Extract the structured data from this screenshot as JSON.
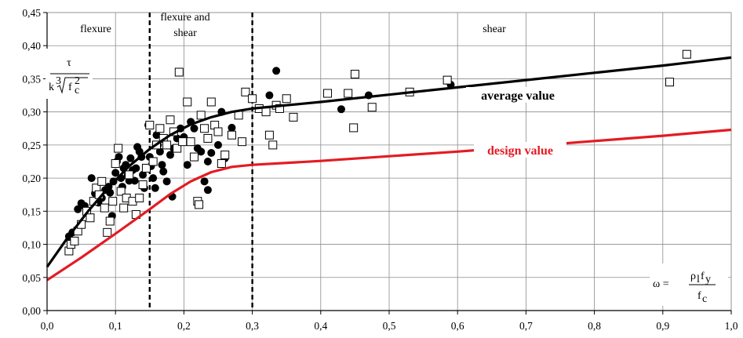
{
  "chart_data": {
    "type": "scatter",
    "xlim": [
      0,
      1.0
    ],
    "ylim": [
      0,
      0.45
    ],
    "x_ticks": [
      "0,0",
      "0,1",
      "0,2",
      "0,3",
      "0,4",
      "0,5",
      "0,6",
      "0,7",
      "0,8",
      "0,9",
      "1,0"
    ],
    "y_ticks": [
      "0,00",
      "0,05",
      "0,10",
      "0,15",
      "0,20",
      "0,25",
      "0,30",
      "0,35",
      "0,40",
      "0,45"
    ],
    "grid": true,
    "y_axis_label": {
      "numerator": "τ",
      "denominator_k": "k",
      "root_index": "3",
      "radicand_f": "f",
      "radicand_sub": "c",
      "radicand_sup": "2"
    },
    "x_axis_label": {
      "lhs": "ω =",
      "num_rho": "ρ",
      "num_rho_sub": "l",
      "num_f": "f",
      "num_f_sub": "y",
      "den_f": "f",
      "den_f_sub": "c"
    },
    "regions": [
      {
        "label": "flexure"
      },
      {
        "label_line1": "flexure and",
        "label_line2": "shear"
      },
      {
        "label": "shear"
      }
    ],
    "boundaries": [
      0.15,
      0.3
    ],
    "boundary_color": "#000000",
    "curves": [
      {
        "name": "average value",
        "color": "#000000",
        "points": [
          [
            0,
            0.066
          ],
          [
            0.03,
            0.11
          ],
          [
            0.06,
            0.15
          ],
          [
            0.09,
            0.186
          ],
          [
            0.12,
            0.218
          ],
          [
            0.15,
            0.244
          ],
          [
            0.18,
            0.265
          ],
          [
            0.21,
            0.281
          ],
          [
            0.24,
            0.292
          ],
          [
            0.27,
            0.3
          ],
          [
            0.3,
            0.305
          ],
          [
            0.35,
            0.31
          ],
          [
            0.4,
            0.315
          ],
          [
            0.5,
            0.326
          ],
          [
            0.6,
            0.337
          ],
          [
            0.7,
            0.348
          ],
          [
            0.8,
            0.359
          ],
          [
            0.9,
            0.37
          ],
          [
            1.0,
            0.382
          ]
        ]
      },
      {
        "name": "design value",
        "color": "#e31b23",
        "points": [
          [
            0,
            0.046
          ],
          [
            0.05,
            0.08
          ],
          [
            0.1,
            0.116
          ],
          [
            0.15,
            0.153
          ],
          [
            0.18,
            0.176
          ],
          [
            0.21,
            0.195
          ],
          [
            0.24,
            0.209
          ],
          [
            0.27,
            0.217
          ],
          [
            0.3,
            0.22
          ],
          [
            0.4,
            0.226
          ],
          [
            0.5,
            0.233
          ],
          [
            0.6,
            0.24
          ],
          [
            0.7,
            0.248
          ],
          [
            0.8,
            0.256
          ],
          [
            0.9,
            0.264
          ],
          [
            1.0,
            0.273
          ]
        ]
      }
    ],
    "series": [
      {
        "name": "filled",
        "marker": "circle",
        "points": [
          [
            0.032,
            0.112
          ],
          [
            0.037,
            0.118
          ],
          [
            0.045,
            0.153
          ],
          [
            0.05,
            0.162
          ],
          [
            0.055,
            0.158
          ],
          [
            0.065,
            0.2
          ],
          [
            0.07,
            0.177
          ],
          [
            0.075,
            0.163
          ],
          [
            0.08,
            0.17
          ],
          [
            0.085,
            0.182
          ],
          [
            0.09,
            0.187
          ],
          [
            0.092,
            0.178
          ],
          [
            0.095,
            0.143
          ],
          [
            0.097,
            0.195
          ],
          [
            0.1,
            0.208
          ],
          [
            0.102,
            0.225
          ],
          [
            0.105,
            0.232
          ],
          [
            0.108,
            0.2
          ],
          [
            0.11,
            0.187
          ],
          [
            0.112,
            0.215
          ],
          [
            0.115,
            0.22
          ],
          [
            0.118,
            0.205
          ],
          [
            0.12,
            0.196
          ],
          [
            0.122,
            0.23
          ],
          [
            0.125,
            0.212
          ],
          [
            0.128,
            0.196
          ],
          [
            0.13,
            0.215
          ],
          [
            0.132,
            0.247
          ],
          [
            0.135,
            0.24
          ],
          [
            0.138,
            0.232
          ],
          [
            0.14,
            0.205
          ],
          [
            0.142,
            0.185
          ],
          [
            0.145,
            0.215
          ],
          [
            0.148,
            0.28
          ],
          [
            0.15,
            0.232
          ],
          [
            0.152,
            0.218
          ],
          [
            0.155,
            0.2
          ],
          [
            0.158,
            0.185
          ],
          [
            0.16,
            0.265
          ],
          [
            0.162,
            0.25
          ],
          [
            0.165,
            0.24
          ],
          [
            0.168,
            0.22
          ],
          [
            0.17,
            0.21
          ],
          [
            0.175,
            0.195
          ],
          [
            0.18,
            0.235
          ],
          [
            0.185,
            0.245
          ],
          [
            0.19,
            0.26
          ],
          [
            0.195,
            0.275
          ],
          [
            0.2,
            0.262
          ],
          [
            0.205,
            0.22
          ],
          [
            0.21,
            0.285
          ],
          [
            0.215,
            0.275
          ],
          [
            0.22,
            0.245
          ],
          [
            0.225,
            0.24
          ],
          [
            0.23,
            0.195
          ],
          [
            0.235,
            0.225
          ],
          [
            0.24,
            0.238
          ],
          [
            0.25,
            0.25
          ],
          [
            0.255,
            0.3
          ],
          [
            0.26,
            0.23
          ],
          [
            0.27,
            0.276
          ],
          [
            0.325,
            0.325
          ],
          [
            0.335,
            0.362
          ],
          [
            0.43,
            0.304
          ],
          [
            0.47,
            0.325
          ],
          [
            0.59,
            0.341
          ],
          [
            0.183,
            0.172
          ],
          [
            0.235,
            0.182
          ]
        ]
      },
      {
        "name": "open",
        "marker": "square",
        "points": [
          [
            0.032,
            0.09
          ],
          [
            0.035,
            0.1
          ],
          [
            0.04,
            0.105
          ],
          [
            0.045,
            0.12
          ],
          [
            0.05,
            0.13
          ],
          [
            0.058,
            0.15
          ],
          [
            0.063,
            0.14
          ],
          [
            0.068,
            0.165
          ],
          [
            0.072,
            0.185
          ],
          [
            0.076,
            0.175
          ],
          [
            0.08,
            0.195
          ],
          [
            0.084,
            0.155
          ],
          [
            0.088,
            0.118
          ],
          [
            0.092,
            0.135
          ],
          [
            0.096,
            0.165
          ],
          [
            0.1,
            0.222
          ],
          [
            0.104,
            0.245
          ],
          [
            0.108,
            0.18
          ],
          [
            0.112,
            0.155
          ],
          [
            0.116,
            0.17
          ],
          [
            0.12,
            0.205
          ],
          [
            0.125,
            0.165
          ],
          [
            0.13,
            0.145
          ],
          [
            0.135,
            0.17
          ],
          [
            0.14,
            0.19
          ],
          [
            0.145,
            0.215
          ],
          [
            0.15,
            0.28
          ],
          [
            0.155,
            0.225
          ],
          [
            0.16,
            0.25
          ],
          [
            0.165,
            0.275
          ],
          [
            0.17,
            0.26
          ],
          [
            0.175,
            0.25
          ],
          [
            0.18,
            0.288
          ],
          [
            0.185,
            0.27
          ],
          [
            0.19,
            0.245
          ],
          [
            0.193,
            0.36
          ],
          [
            0.198,
            0.255
          ],
          [
            0.205,
            0.315
          ],
          [
            0.21,
            0.255
          ],
          [
            0.215,
            0.232
          ],
          [
            0.22,
            0.165
          ],
          [
            0.222,
            0.16
          ],
          [
            0.225,
            0.295
          ],
          [
            0.23,
            0.275
          ],
          [
            0.235,
            0.26
          ],
          [
            0.24,
            0.315
          ],
          [
            0.245,
            0.28
          ],
          [
            0.25,
            0.27
          ],
          [
            0.255,
            0.222
          ],
          [
            0.26,
            0.235
          ],
          [
            0.27,
            0.265
          ],
          [
            0.28,
            0.295
          ],
          [
            0.285,
            0.255
          ],
          [
            0.29,
            0.33
          ],
          [
            0.3,
            0.32
          ],
          [
            0.31,
            0.305
          ],
          [
            0.32,
            0.3
          ],
          [
            0.325,
            0.265
          ],
          [
            0.33,
            0.25
          ],
          [
            0.335,
            0.31
          ],
          [
            0.34,
            0.305
          ],
          [
            0.35,
            0.32
          ],
          [
            0.36,
            0.292
          ],
          [
            0.41,
            0.328
          ],
          [
            0.44,
            0.328
          ],
          [
            0.45,
            0.357
          ],
          [
            0.448,
            0.276
          ],
          [
            0.475,
            0.307
          ],
          [
            0.53,
            0.33
          ],
          [
            0.585,
            0.348
          ],
          [
            0.91,
            0.345
          ],
          [
            0.935,
            0.387
          ]
        ]
      }
    ]
  }
}
